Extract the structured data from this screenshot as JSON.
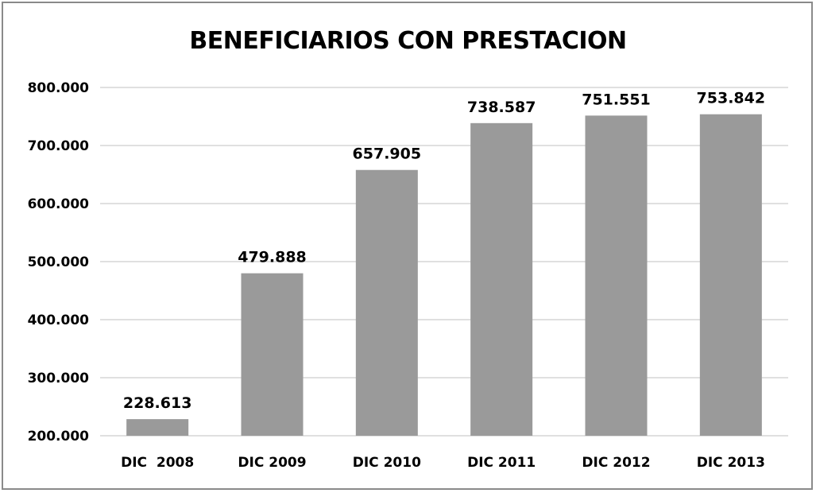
{
  "chart_data": {
    "type": "bar",
    "title": "BENEFICIARIOS CON PRESTACION",
    "xlabel": "",
    "ylabel": "",
    "categories": [
      "DIC  2008",
      "DIC 2009",
      "DIC 2010",
      "DIC 2011",
      "DIC 2012",
      "DIC 2013"
    ],
    "values": [
      228613,
      479888,
      657905,
      738587,
      751551,
      753842
    ],
    "value_labels": [
      "228.613",
      "479.888",
      "657.905",
      "738.587",
      "751.551",
      "753.842"
    ],
    "ylim": [
      200000,
      800000
    ],
    "yticks": [
      200000,
      300000,
      400000,
      500000,
      600000,
      700000,
      800000
    ],
    "ytick_labels": [
      "200.000",
      "300.000",
      "400.000",
      "500.000",
      "600.000",
      "700.000",
      "800.000"
    ],
    "grid": true,
    "legend": "none",
    "colors": {
      "bar": "#9a9a9a",
      "grid": "#d6d6d6",
      "border": "#8a8a8a"
    }
  }
}
